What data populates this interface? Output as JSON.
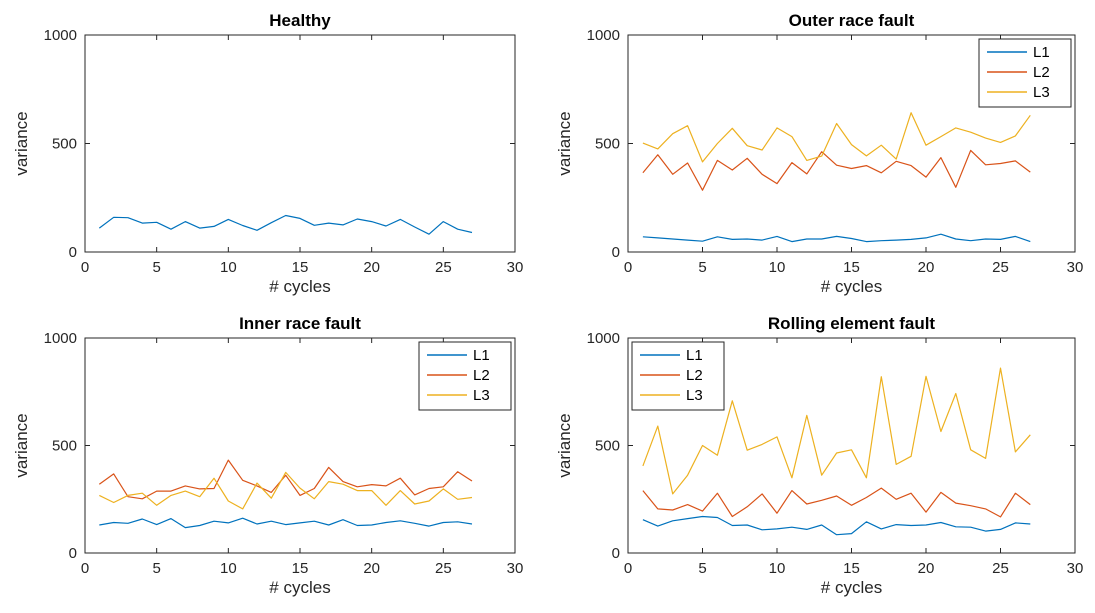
{
  "colors": {
    "L1": "#0072BD",
    "L2": "#D95319",
    "L3": "#EDB120"
  },
  "chart_data": [
    {
      "type": "line",
      "title": "Healthy",
      "xlabel": "# cycles",
      "ylabel": "variance",
      "xlim": [
        0,
        30
      ],
      "ylim": [
        0,
        1000
      ],
      "xticks": [
        0,
        5,
        10,
        15,
        20,
        25,
        30
      ],
      "yticks": [
        0,
        500,
        1000
      ],
      "legend": null,
      "x": [
        1,
        2,
        3,
        4,
        5,
        6,
        7,
        8,
        9,
        10,
        11,
        12,
        13,
        14,
        15,
        16,
        17,
        18,
        19,
        20,
        21,
        22,
        23,
        24,
        25,
        26,
        27
      ],
      "series": [
        {
          "color": "#0072BD",
          "values": [
            110,
            160,
            158,
            133,
            137,
            105,
            140,
            110,
            118,
            150,
            122,
            100,
            135,
            168,
            155,
            123,
            133,
            125,
            152,
            140,
            120,
            150,
            115,
            82,
            140,
            105,
            90
          ]
        }
      ]
    },
    {
      "type": "line",
      "title": "Outer race fault",
      "xlabel": "# cycles",
      "ylabel": "variance",
      "xlim": [
        0,
        30
      ],
      "ylim": [
        0,
        1000
      ],
      "xticks": [
        0,
        5,
        10,
        15,
        20,
        25,
        30
      ],
      "yticks": [
        0,
        500,
        1000
      ],
      "legend": "top-right",
      "x": [
        1,
        2,
        3,
        4,
        5,
        6,
        7,
        8,
        9,
        10,
        11,
        12,
        13,
        14,
        15,
        16,
        17,
        18,
        19,
        20,
        21,
        22,
        23,
        24,
        25,
        26,
        27
      ],
      "series": [
        {
          "name": "L1",
          "color": "#0072BD",
          "values": [
            70,
            65,
            60,
            55,
            50,
            70,
            58,
            60,
            55,
            72,
            48,
            60,
            60,
            72,
            62,
            48,
            52,
            55,
            58,
            65,
            82,
            60,
            52,
            60,
            58,
            72,
            48
          ]
        },
        {
          "name": "L2",
          "color": "#D95319",
          "values": [
            365,
            448,
            358,
            410,
            285,
            422,
            378,
            432,
            358,
            315,
            412,
            360,
            462,
            400,
            385,
            398,
            365,
            418,
            398,
            345,
            435,
            298,
            468,
            402,
            408,
            420,
            368
          ]
        },
        {
          "name": "L3",
          "color": "#EDB120",
          "values": [
            502,
            475,
            545,
            582,
            415,
            500,
            570,
            490,
            470,
            572,
            532,
            422,
            442,
            592,
            495,
            443,
            492,
            428,
            642,
            492,
            532,
            572,
            552,
            525,
            505,
            535,
            630
          ]
        }
      ]
    },
    {
      "type": "line",
      "title": "Inner race fault",
      "xlabel": "# cycles",
      "ylabel": "variance",
      "xlim": [
        0,
        30
      ],
      "ylim": [
        0,
        1000
      ],
      "xticks": [
        0,
        5,
        10,
        15,
        20,
        25,
        30
      ],
      "yticks": [
        0,
        500,
        1000
      ],
      "legend": "top-right",
      "x": [
        1,
        2,
        3,
        4,
        5,
        6,
        7,
        8,
        9,
        10,
        11,
        12,
        13,
        14,
        15,
        16,
        17,
        18,
        19,
        20,
        21,
        22,
        23,
        24,
        25,
        26,
        27
      ],
      "series": [
        {
          "name": "L1",
          "color": "#0072BD",
          "values": [
            130,
            142,
            138,
            158,
            132,
            160,
            118,
            128,
            148,
            140,
            162,
            135,
            148,
            132,
            140,
            148,
            130,
            155,
            128,
            130,
            142,
            150,
            138,
            125,
            142,
            145,
            135
          ]
        },
        {
          "name": "L2",
          "color": "#D95319",
          "values": [
            320,
            368,
            262,
            252,
            288,
            288,
            312,
            298,
            300,
            432,
            338,
            312,
            282,
            362,
            268,
            300,
            398,
            332,
            308,
            318,
            312,
            348,
            270,
            300,
            308,
            378,
            335
          ]
        },
        {
          "name": "L3",
          "color": "#EDB120",
          "values": [
            268,
            235,
            268,
            278,
            222,
            268,
            288,
            262,
            348,
            242,
            205,
            325,
            255,
            375,
            302,
            252,
            332,
            320,
            290,
            290,
            222,
            290,
            228,
            242,
            298,
            250,
            258
          ]
        }
      ]
    },
    {
      "type": "line",
      "title": "Rolling element fault",
      "xlabel": "# cycles",
      "ylabel": "variance",
      "xlim": [
        0,
        30
      ],
      "ylim": [
        0,
        1000
      ],
      "xticks": [
        0,
        5,
        10,
        15,
        20,
        25,
        30
      ],
      "yticks": [
        0,
        500,
        1000
      ],
      "legend": "top-left",
      "x": [
        1,
        2,
        3,
        4,
        5,
        6,
        7,
        8,
        9,
        10,
        11,
        12,
        13,
        14,
        15,
        16,
        17,
        18,
        19,
        20,
        21,
        22,
        23,
        24,
        25,
        26,
        27
      ],
      "series": [
        {
          "name": "L1",
          "color": "#0072BD",
          "values": [
            155,
            125,
            150,
            160,
            170,
            165,
            128,
            130,
            108,
            112,
            120,
            110,
            130,
            85,
            90,
            145,
            112,
            132,
            128,
            130,
            142,
            122,
            120,
            102,
            110,
            140,
            135
          ]
        },
        {
          "name": "L2",
          "color": "#D95319",
          "values": [
            290,
            205,
            200,
            225,
            195,
            278,
            170,
            215,
            275,
            185,
            290,
            228,
            245,
            265,
            222,
            258,
            302,
            250,
            278,
            190,
            282,
            232,
            220,
            205,
            168,
            278,
            225
          ]
        },
        {
          "name": "L3",
          "color": "#EDB120",
          "values": [
            405,
            590,
            275,
            362,
            500,
            455,
            708,
            478,
            505,
            540,
            350,
            640,
            362,
            465,
            480,
            350,
            820,
            412,
            450,
            822,
            565,
            742,
            480,
            440,
            860,
            470,
            550
          ]
        }
      ]
    }
  ]
}
